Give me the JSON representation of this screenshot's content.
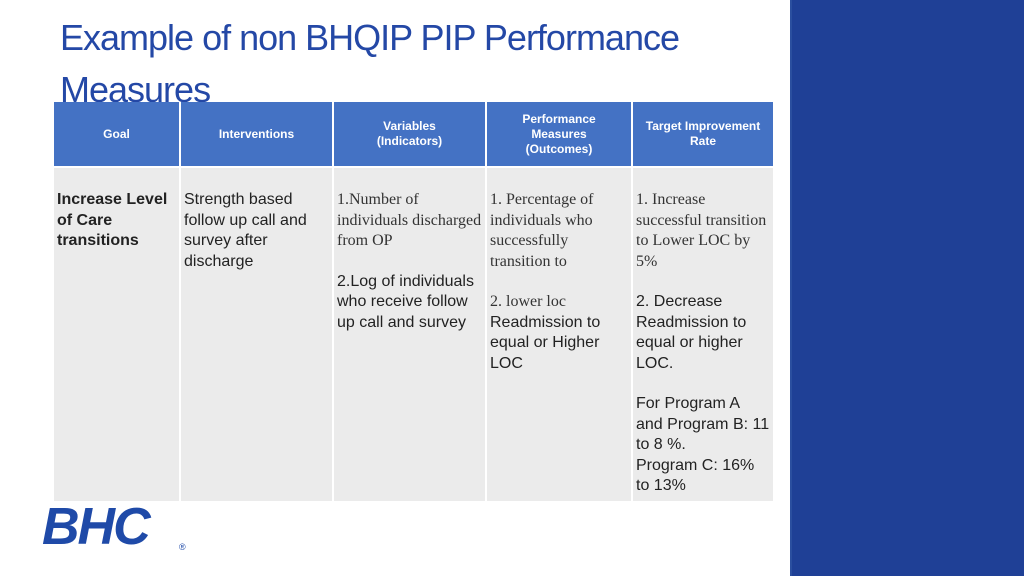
{
  "title": "Example of non BHQIP PIP Performance Measures",
  "table": {
    "headers": [
      "Goal",
      "Interventions",
      "Variables (Indicators)",
      "Performance Measures (Outcomes)",
      "Target Improvement Rate"
    ],
    "goal": "Increase Level of Care transitions",
    "interventions": "Strength based follow up call and survey after discharge",
    "variables": {
      "v1": "1.Number of individuals discharged from OP",
      "v2": "2.Log of individuals who receive follow up call and survey"
    },
    "measures": {
      "m1": "1. Percentage of individuals who successfully transition to",
      "m2a": "2. lower loc",
      "m2b": "Readmission to equal or Higher LOC"
    },
    "targets": {
      "t1": "1. Increase successful transition to Lower LOC by 5%",
      "t2": "2. Decrease Readmission to equal or higher LOC.",
      "t3": "For Program A  and Program B:  11 to 8 %.",
      "t4": "Program C: 16% to 13%"
    }
  },
  "logo": {
    "text": "BHC",
    "mark": "®",
    "color": "#1f4aa8"
  },
  "colors": {
    "title": "#2448a6",
    "header_fill": "#4472c4",
    "cell_fill": "#ebebeb",
    "side_panel": "#1f4096"
  }
}
